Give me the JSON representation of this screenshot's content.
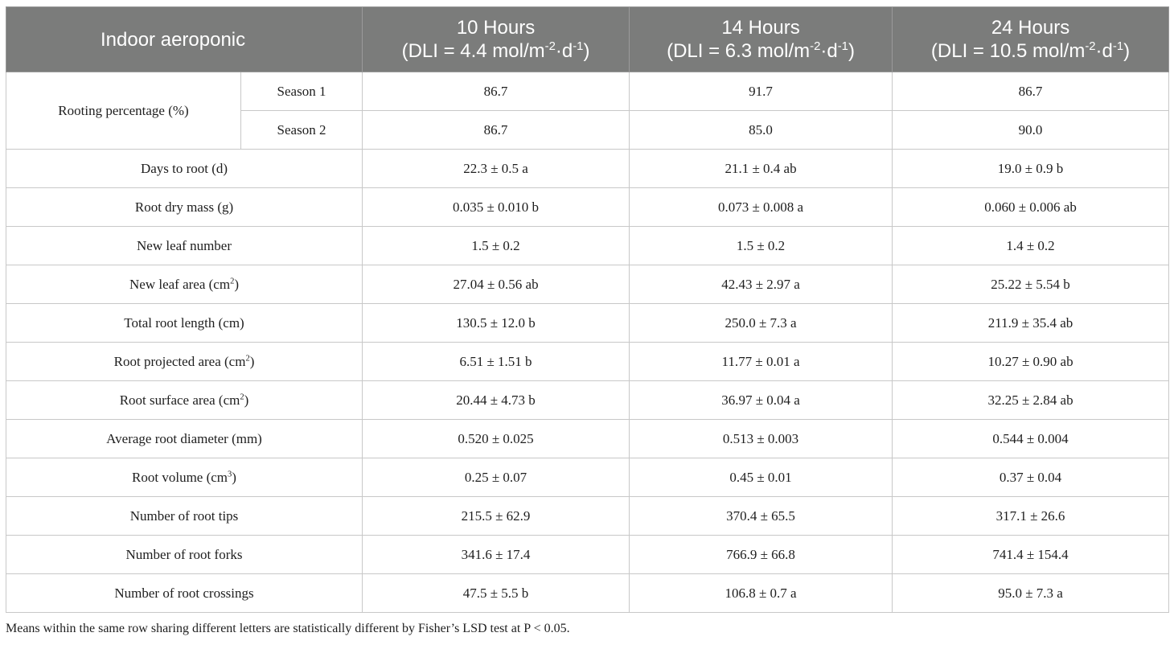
{
  "table": {
    "corner_label": "Indoor aeroponic",
    "columns": [
      {
        "line1": "10 Hours",
        "dli_prefix": "(DLI = 4.4 mol/m",
        "exp1": "-2",
        "mid": "·d",
        "exp2": "-1",
        "end": ")"
      },
      {
        "line1": "14 Hours",
        "dli_prefix": "(DLI = 6.3 mol/m",
        "exp1": "-2",
        "mid": "·d",
        "exp2": "-1",
        "end": ")"
      },
      {
        "line1": "24 Hours",
        "dli_prefix": "(DLI = 10.5 mol/m",
        "exp1": "-2",
        "mid": "·d",
        "exp2": "-1",
        "end": ")"
      }
    ],
    "rooting": {
      "label": "Rooting percentage (%)",
      "seasons": [
        {
          "name": "Season 1",
          "values": [
            "86.7",
            "91.7",
            "86.7"
          ]
        },
        {
          "name": "Season 2",
          "values": [
            "86.7",
            "85.0",
            "90.0"
          ]
        }
      ]
    },
    "rows": [
      {
        "label": "Days to root (d)",
        "sup": "",
        "suffix": "",
        "values": [
          "22.3 ± 0.5 a",
          "21.1 ± 0.4 ab",
          "19.0 ± 0.9 b"
        ]
      },
      {
        "label": "Root dry mass (g)",
        "sup": "",
        "suffix": "",
        "values": [
          "0.035 ± 0.010 b",
          "0.073 ± 0.008 a",
          "0.060 ± 0.006 ab"
        ]
      },
      {
        "label": "New leaf number",
        "sup": "",
        "suffix": "",
        "values": [
          "1.5 ± 0.2",
          "1.5 ± 0.2",
          "1.4 ± 0.2"
        ]
      },
      {
        "label": "New leaf area (cm",
        "sup": "2",
        "suffix": ")",
        "values": [
          "27.04 ± 0.56 ab",
          "42.43 ± 2.97 a",
          "25.22 ± 5.54 b"
        ]
      },
      {
        "label": "Total root length (cm)",
        "sup": "",
        "suffix": "",
        "values": [
          "130.5 ± 12.0 b",
          "250.0 ± 7.3 a",
          "211.9 ± 35.4 ab"
        ]
      },
      {
        "label": "Root projected area (cm",
        "sup": "2",
        "suffix": ")",
        "values": [
          "6.51 ± 1.51 b",
          "11.77 ± 0.01 a",
          "10.27 ± 0.90 ab"
        ]
      },
      {
        "label": "Root surface area (cm",
        "sup": "2",
        "suffix": ")",
        "values": [
          "20.44 ± 4.73 b",
          "36.97 ± 0.04 a",
          "32.25 ± 2.84 ab"
        ]
      },
      {
        "label": "Average root diameter (mm)",
        "sup": "",
        "suffix": "",
        "values": [
          "0.520 ± 0.025",
          "0.513 ± 0.003",
          "0.544 ± 0.004"
        ]
      },
      {
        "label": "Root volume (cm",
        "sup": "3",
        "suffix": ")",
        "values": [
          "0.25 ± 0.07",
          "0.45 ± 0.01",
          "0.37 ± 0.04"
        ]
      },
      {
        "label": "Number of root tips",
        "sup": "",
        "suffix": "",
        "values": [
          "215.5 ± 62.9",
          "370.4 ± 65.5",
          "317.1 ± 26.6"
        ]
      },
      {
        "label": "Number of root forks",
        "sup": "",
        "suffix": "",
        "values": [
          "341.6 ± 17.4",
          "766.9 ± 66.8",
          "741.4 ± 154.4"
        ]
      },
      {
        "label": "Number of root crossings",
        "sup": "",
        "suffix": "",
        "values": [
          "47.5 ± 5.5 b",
          "106.8 ± 0.7 a",
          "95.0 ± 7.3 a"
        ]
      }
    ]
  },
  "footnote": "Means within the same row sharing different letters are statistically different by Fisher’s LSD test at P < 0.05.",
  "colors": {
    "header_bg": "#7b7c7b",
    "header_text": "#ffffff",
    "border": "#c8c8c8",
    "body_text": "#1e1e1e"
  }
}
